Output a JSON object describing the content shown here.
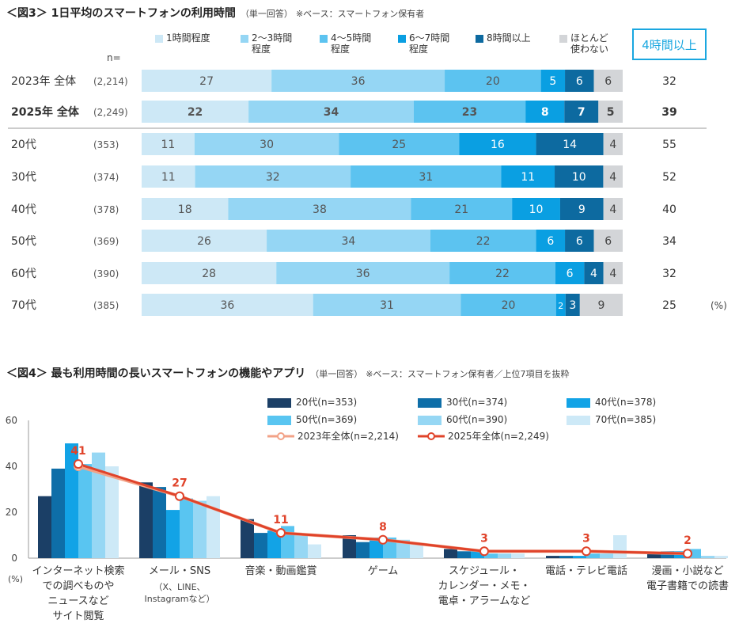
{
  "fig3": {
    "title": "＜図3＞ 1日平均のスマートフォンの利用時間",
    "subtitle": "（単一回答）",
    "note": "※ベース：スマートフォン保有者",
    "n_label": "n=",
    "badge": "4時間以上",
    "unit": "(%)"
  },
  "fig4": {
    "title": "＜図4＞ 最も利用時間の長いスマートフォンの機能やアプリ",
    "subtitle": "（単一回答）",
    "note": "※ベース：スマートフォン保有者／上位7項目を抜粋",
    "y_unit": "(%)"
  },
  "chart_data": [
    {
      "type": "bar",
      "orientation": "horizontal",
      "stacked": true,
      "unit": "%",
      "segments": [
        {
          "name": "1時間程度",
          "color": "#cde8f6"
        },
        {
          "name": "2～3時間\n程度",
          "color": "#95d6f4"
        },
        {
          "name": "4～5時間\n程度",
          "color": "#5cc3f0"
        },
        {
          "name": "6～7時間\n程度",
          "color": "#0a9fe2"
        },
        {
          "name": "8時間以上",
          "color": "#0d6aa0"
        },
        {
          "name": "ほとんど\n使わない",
          "color": "#d3d5d8"
        }
      ],
      "rows": [
        {
          "label": "2023年 全体",
          "n": "(2,214)",
          "bold": false,
          "values": [
            27,
            36,
            20,
            5,
            6,
            6
          ],
          "total_4h_plus": "32"
        },
        {
          "label": "2025年 全体",
          "n": "(2,249)",
          "bold": true,
          "values": [
            22,
            34,
            23,
            8,
            7,
            5
          ],
          "total_4h_plus": "39"
        },
        {
          "label": "20代",
          "n": "(353)",
          "bold": false,
          "values": [
            11,
            30,
            25,
            16,
            14,
            4
          ],
          "total_4h_plus": "55"
        },
        {
          "label": "30代",
          "n": "(374)",
          "bold": false,
          "values": [
            11,
            32,
            31,
            11,
            10,
            4
          ],
          "total_4h_plus": "52"
        },
        {
          "label": "40代",
          "n": "(378)",
          "bold": false,
          "values": [
            18,
            38,
            21,
            10,
            9,
            4
          ],
          "total_4h_plus": "40"
        },
        {
          "label": "50代",
          "n": "(369)",
          "bold": false,
          "values": [
            26,
            34,
            22,
            6,
            6,
            6
          ],
          "total_4h_plus": "34"
        },
        {
          "label": "60代",
          "n": "(390)",
          "bold": false,
          "values": [
            28,
            36,
            22,
            6,
            4,
            4
          ],
          "total_4h_plus": "32"
        },
        {
          "label": "70代",
          "n": "(385)",
          "bold": false,
          "values": [
            36,
            31,
            20,
            2,
            3,
            9
          ],
          "total_4h_plus": "25"
        }
      ]
    },
    {
      "type": "bar",
      "combo_line": true,
      "ylim": [
        0,
        60
      ],
      "yticks": [
        0,
        20,
        40,
        60
      ],
      "categories": [
        "インターネット検索\nでの調べものや\nニュースなど\nサイト閲覧",
        "メール・SNS",
        "音楽・動画鑑賞",
        "ゲーム",
        "スケジュール・\nカレンダー・メモ・\n電卓・アラームなど",
        "電話・テレビ電話",
        "漫画・小説など\n電子書籍での読書"
      ],
      "category_notes": [
        "",
        "（X、LINE、\nInstagramなど）",
        "",
        "",
        "",
        "",
        ""
      ],
      "series": [
        {
          "name": "20代(n=353)",
          "color": "#1b3f66",
          "values": [
            27,
            33,
            17,
            10,
            4,
            1,
            2
          ]
        },
        {
          "name": "30代(n=374)",
          "color": "#0e6ea8",
          "values": [
            39,
            31,
            11,
            7,
            3,
            1,
            3
          ]
        },
        {
          "name": "40代(n=378)",
          "color": "#12a3e6",
          "values": [
            50,
            21,
            12,
            9,
            3,
            1,
            3
          ]
        },
        {
          "name": "50代(n=369)",
          "color": "#59c5f1",
          "values": [
            41,
            26,
            14,
            9,
            2,
            2,
            4
          ]
        },
        {
          "name": "60代(n=390)",
          "color": "#96d7f4",
          "values": [
            46,
            25,
            10,
            8,
            2,
            2,
            1
          ]
        },
        {
          "name": "70代(n=385)",
          "color": "#cde9f7",
          "values": [
            40,
            27,
            6,
            6,
            2,
            10,
            1
          ]
        }
      ],
      "lines": [
        {
          "name": "2023年全体(n=2,214)",
          "color": "#f2a287",
          "values": [
            40,
            27,
            11,
            8,
            3,
            3,
            2
          ]
        },
        {
          "name": "2025年全体(n=2,249)",
          "color": "#e0432a",
          "values": [
            41,
            27,
            11,
            8,
            3,
            3,
            2
          ],
          "labels": [
            "41",
            "27",
            "11",
            "8",
            "3",
            "3",
            "2"
          ]
        }
      ]
    }
  ]
}
